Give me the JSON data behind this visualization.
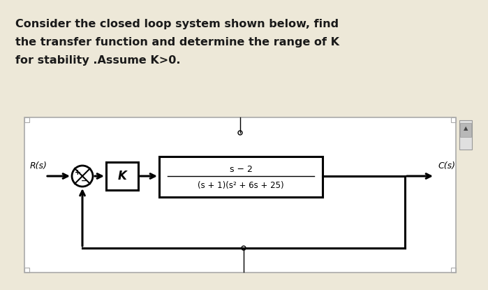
{
  "bg_color": "#ede8d8",
  "diagram_bg": "#ffffff",
  "title_lines": [
    "Consider the closed loop system shown below, find",
    "the transfer function and determine the range of K",
    "for stability .Assume K>0."
  ],
  "title_fontsize": 11.5,
  "title_color": "#1a1a1a",
  "R_label": "R(s)",
  "C_label": "C(s)",
  "K_label": "K",
  "tf_numerator": "s − 2",
  "tf_denominator": "(s + 1)(s² + 6s + 25)",
  "diagram_border_color": "#aaaaaa",
  "block_border_color": "#000000",
  "line_color": "#000000",
  "scrollbar_bg": "#d0d0d0",
  "scrollbar_border": "#999999"
}
